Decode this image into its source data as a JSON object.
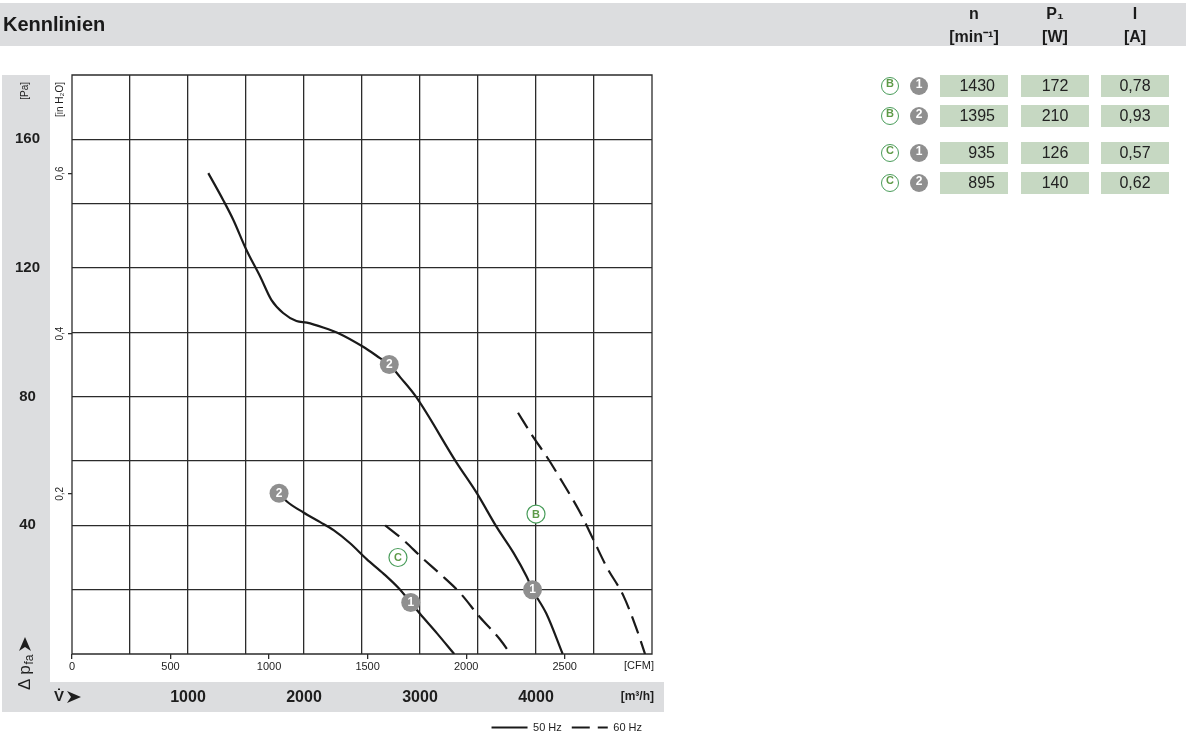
{
  "chart_data": [
    {
      "type": "line",
      "title": "Kennlinien",
      "xlabel": "[m³/h]",
      "x2label": "[CFM]",
      "ylabel": "[Pa]",
      "y2label": "[in H₂O]",
      "series": [
        {
          "name": "50 Hz",
          "color": "#1a1a1a",
          "line_style": "solid",
          "x": [
            1175,
            1305,
            1390,
            1505,
            1620,
            1720,
            1820,
            1935,
            2025,
            2165,
            2310,
            2510,
            2655,
            2735,
            2830,
            2965,
            3315,
            3490,
            3660,
            3805,
            3920,
            3970,
            4090,
            4230
          ],
          "values": [
            149.5,
            141,
            135,
            125.5,
            117.5,
            110,
            106,
            103.5,
            103,
            101.5,
            99.5,
            95.5,
            92,
            90,
            86,
            80,
            59.5,
            50,
            39.5,
            31.5,
            24,
            20,
            12.5,
            0
          ]
        },
        {
          "color": "#1a1a1a",
          "line_style": "solid",
          "x": [
            1785,
            1850,
            1995,
            2140,
            2255,
            2395,
            2540,
            2685,
            2815,
            2920,
            3000,
            3145,
            3295
          ],
          "values": [
            50,
            47.5,
            44,
            41,
            38.5,
            34.5,
            29.5,
            25,
            20.5,
            16,
            12.5,
            6.5,
            0
          ]
        },
        {
          "name": "60 Hz",
          "color": "#1a1a1a",
          "line_style": "dashed",
          "x": [
            3845,
            3975,
            4090,
            4235,
            4380,
            4495,
            4610,
            4755,
            4870,
            4940
          ],
          "values": [
            75,
            67.5,
            61.5,
            53,
            44,
            35.5,
            27,
            18,
            7.5,
            0
          ]
        },
        {
          "color": "#1a1a1a",
          "line_style": "dashed",
          "x": [
            2700,
            2855,
            3015,
            3170,
            3345,
            3515,
            3690,
            3780
          ],
          "values": [
            40,
            35.5,
            30,
            25,
            19,
            11.5,
            4.5,
            0
          ]
        }
      ],
      "xlim": [
        0,
        5000
      ],
      "xticks": [
        {
          "value": 500,
          "label": null
        },
        1000,
        {
          "value": 1500,
          "label": null
        },
        2000,
        {
          "value": 2500,
          "label": null
        },
        3000,
        {
          "value": 3500,
          "label": null
        },
        4000,
        {
          "value": 4500,
          "label": null
        }
      ],
      "x2lim": [
        0,
        2943
      ],
      "x2ticks": [
        0,
        500,
        1000,
        1500,
        2000,
        2500
      ],
      "ylim": [
        0,
        180
      ],
      "yticks": [
        {
          "value": 20,
          "label": null
        },
        40,
        {
          "value": 60,
          "label": null
        },
        80,
        {
          "value": 100,
          "label": null
        },
        120,
        {
          "value": 140,
          "label": null
        },
        160
      ],
      "y2lim": [
        0,
        0.723
      ],
      "y2ticks": [
        {
          "value": 0.2,
          "label": "0,2"
        },
        {
          "value": 0.4,
          "label": "0,4"
        },
        {
          "value": 0.6,
          "label": "0,6"
        }
      ],
      "grid": true,
      "legend": "bottom right",
      "marker": "none",
      "annotations": [
        {
          "text": "2",
          "x": 2735,
          "y": 90
        },
        {
          "text": "1",
          "x": 3970,
          "y": 20
        },
        {
          "text": "2",
          "x": 1785,
          "y": 50
        },
        {
          "text": "1",
          "x": 2920,
          "y": 16
        },
        {
          "text": "B",
          "x": 4000,
          "y": 43.5
        },
        {
          "text": "C",
          "x": 2810,
          "y": 30
        },
        "Δ p$_{fa}$",
        "V̇"
      ]
    },
    {
      "type": "heatmap",
      "categories": [
        "n\n[min⁻¹]",
        "P₁\n[W]",
        "I\n[A]"
      ],
      "y_categories": [
        "B",
        "B",
        "C",
        "C"
      ],
      "y2_categories": [
        "1",
        "2",
        "1",
        "2"
      ],
      "color": "#c6d8c2",
      "data_labels": true,
      "cells": [
        [
          1430,
          172,
          0.78
        ],
        [
          1395,
          210,
          0.93
        ],
        [
          935,
          126,
          0.57
        ],
        [
          895,
          140,
          0.62
        ]
      ],
      "cell_labels": [
        [
          "1430",
          "172",
          "0,78"
        ],
        [
          "1395",
          "210",
          "0,93"
        ],
        [
          "935",
          "126",
          "0,57"
        ],
        [
          "895",
          "140",
          "0,62"
        ]
      ]
    }
  ]
}
